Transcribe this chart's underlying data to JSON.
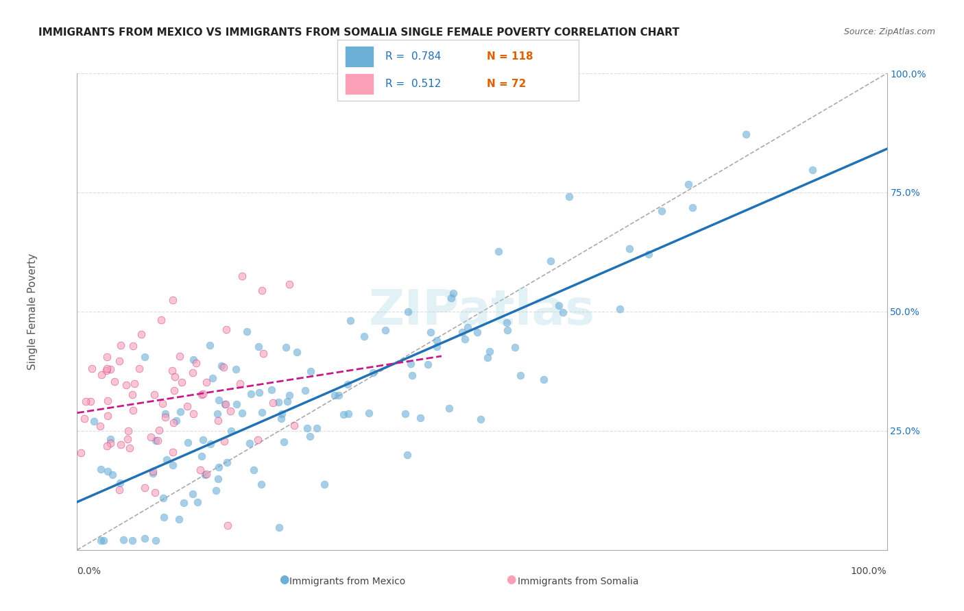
{
  "title": "IMMIGRANTS FROM MEXICO VS IMMIGRANTS FROM SOMALIA SINGLE FEMALE POVERTY CORRELATION CHART",
  "source": "Source: ZipAtlas.com",
  "ylabel": "Single Female Poverty",
  "xlabel_bottom_left": "0.0%",
  "xlabel_bottom_right": "100.0%",
  "right_yticks": [
    "25.0%",
    "50.0%",
    "75.0%",
    "100.0%"
  ],
  "right_ytick_vals": [
    0.25,
    0.5,
    0.75,
    1.0
  ],
  "legend_label_mexico": "Immigrants from Mexico",
  "legend_label_somalia": "Immigrants from Somalia",
  "R_mexico": 0.784,
  "N_mexico": 118,
  "R_somalia": 0.512,
  "N_somalia": 72,
  "blue_color": "#6baed6",
  "blue_dark": "#2171b5",
  "pink_color": "#fa9fb5",
  "pink_dark": "#c51b8a",
  "watermark": "ZIPatlas",
  "background_color": "#ffffff",
  "grid_color": "#dddddd"
}
